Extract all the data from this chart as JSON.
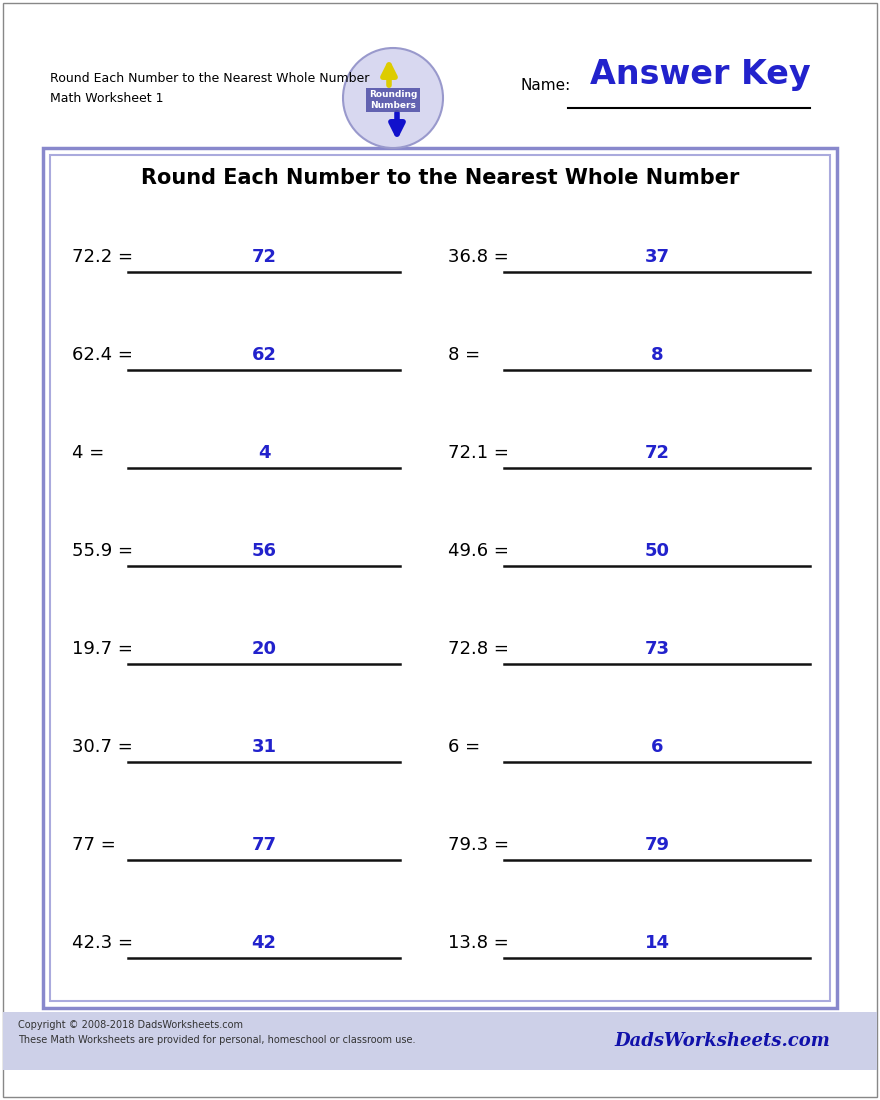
{
  "title": "Round Each Number to the Nearest Whole Number",
  "header_line1": "Round Each Number to the Nearest Whole Number",
  "header_line2": "Math Worksheet 1",
  "name_label": "Name:",
  "answer_key_text": "Answer Key",
  "problems_left": [
    {
      "question": "72.2 =",
      "answer": "72"
    },
    {
      "question": "62.4 =",
      "answer": "62"
    },
    {
      "question": "4 =",
      "answer": "4"
    },
    {
      "question": "55.9 =",
      "answer": "56"
    },
    {
      "question": "19.7 =",
      "answer": "20"
    },
    {
      "question": "30.7 =",
      "answer": "31"
    },
    {
      "question": "77 =",
      "answer": "77"
    },
    {
      "question": "42.3 =",
      "answer": "42"
    }
  ],
  "problems_right": [
    {
      "question": "36.8 =",
      "answer": "37"
    },
    {
      "question": "8 =",
      "answer": "8"
    },
    {
      "question": "72.1 =",
      "answer": "72"
    },
    {
      "question": "49.6 =",
      "answer": "50"
    },
    {
      "question": "72.8 =",
      "answer": "73"
    },
    {
      "question": "6 =",
      "answer": "6"
    },
    {
      "question": "79.3 =",
      "answer": "79"
    },
    {
      "question": "13.8 =",
      "answer": "14"
    }
  ],
  "bg_color": "#ffffff",
  "page_border_color": "#999999",
  "outer_box_color": "#8888cc",
  "inner_box_color": "#aaaadd",
  "question_color": "#000000",
  "answer_color": "#2222cc",
  "title_color": "#000000",
  "answer_key_color": "#2222cc",
  "footer_bg": "#cdd0e8",
  "copyright_text": "Copyright © 2008-2018 DadsWorksheets.com\nThese Math Worksheets are provided for personal, homeschool or classroom use.",
  "watermark_text": "DadsWorksheets.com",
  "logo_circle_color": "#d8d8f0",
  "logo_text": "Rounding\nNumbers",
  "logo_box_color": "#5555aa"
}
